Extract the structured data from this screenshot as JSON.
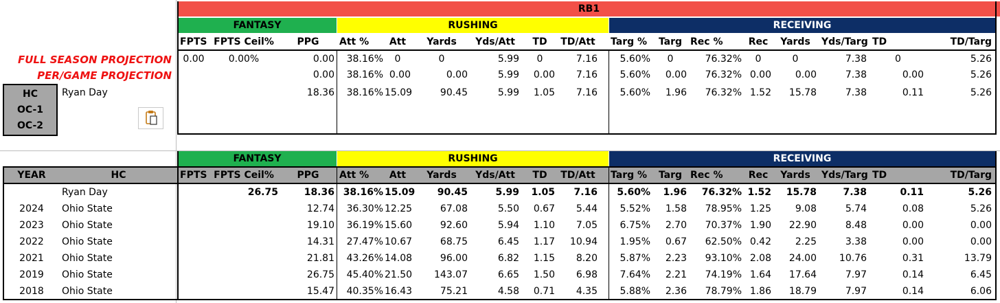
{
  "top": {
    "title": "RB1",
    "groups": {
      "fantasy": "FANTASY",
      "rushing": "RUSHING",
      "receiving": "RECEIVING"
    },
    "headers": [
      "FPTS",
      "FPTS Ceil%",
      "PPG",
      "Att %",
      "Att",
      "Yards",
      "Yds/Att",
      "TD",
      "TD/Att",
      "Targ %",
      "Targ",
      "Rec %",
      "Rec",
      "Yards",
      "Yds/Targ",
      "TD",
      "TD/Targ"
    ],
    "labels": {
      "full": "FULL SEASON PROJECTION",
      "per_game": "PER/GAME PROJECTION"
    },
    "rows": [
      [
        "0.00",
        "0.00%",
        "0.00",
        "38.16%",
        "0",
        "0",
        "5.99",
        "0",
        "7.16",
        "5.60%",
        "0",
        "76.32%",
        "0",
        "0",
        "7.38",
        "0",
        "5.26"
      ],
      [
        "",
        "",
        "0.00",
        "38.16%",
        "0.00",
        "0.00",
        "5.99",
        "0.00",
        "7.16",
        "5.60%",
        "0.00",
        "76.32%",
        "0.00",
        "0.00",
        "7.38",
        "0.00",
        "5.26"
      ],
      [
        "",
        "",
        "18.36",
        "38.16%",
        "15.09",
        "90.45",
        "5.99",
        "1.05",
        "7.16",
        "5.60%",
        "1.96",
        "76.32%",
        "1.52",
        "15.78",
        "7.38",
        "0.11",
        "5.26"
      ]
    ],
    "coach_box": [
      "HC",
      "OC-1",
      "OC-2"
    ],
    "coach_name": "Ryan Day"
  },
  "bottom": {
    "groups": {
      "fantasy": "FANTASY",
      "rushing": "RUSHING",
      "receiving": "RECEIVING"
    },
    "left_headers": [
      "YEAR",
      "HC"
    ],
    "headers": [
      "FPTS",
      "FPTS Ceil%",
      "PPG",
      "Att %",
      "Att",
      "Yards",
      "Yds/Att",
      "TD",
      "TD/Att",
      "Targ %",
      "Targ",
      "Rec %",
      "Rec",
      "Yards",
      "Yds/Targ",
      "TD",
      "TD/Targ"
    ],
    "summary": {
      "year": "",
      "hc": "Ryan Day",
      "values": [
        "",
        "26.75",
        "18.36",
        "38.16%",
        "15.09",
        "90.45",
        "5.99",
        "1.05",
        "7.16",
        "5.60%",
        "1.96",
        "76.32%",
        "1.52",
        "15.78",
        "7.38",
        "0.11",
        "5.26"
      ]
    },
    "rows": [
      {
        "year": "2024",
        "hc": "Ohio State",
        "values": [
          "",
          "",
          "12.74",
          "36.30%",
          "12.25",
          "67.08",
          "5.50",
          "0.67",
          "5.44",
          "5.52%",
          "1.58",
          "78.95%",
          "1.25",
          "9.08",
          "5.74",
          "0.08",
          "5.26"
        ]
      },
      {
        "year": "2023",
        "hc": "Ohio State",
        "values": [
          "",
          "",
          "19.10",
          "36.19%",
          "15.60",
          "92.60",
          "5.94",
          "1.10",
          "7.05",
          "6.75%",
          "2.70",
          "70.37%",
          "1.90",
          "22.90",
          "8.48",
          "0.00",
          "0.00"
        ]
      },
      {
        "year": "2022",
        "hc": "Ohio State",
        "values": [
          "",
          "",
          "14.31",
          "27.47%",
          "10.67",
          "68.75",
          "6.45",
          "1.17",
          "10.94",
          "1.95%",
          "0.67",
          "62.50%",
          "0.42",
          "2.25",
          "3.38",
          "0.00",
          "0.00"
        ]
      },
      {
        "year": "2021",
        "hc": "Ohio State",
        "values": [
          "",
          "",
          "21.81",
          "43.26%",
          "14.08",
          "96.00",
          "6.82",
          "1.15",
          "8.20",
          "5.87%",
          "2.23",
          "93.10%",
          "2.08",
          "24.00",
          "10.76",
          "0.31",
          "13.79"
        ]
      },
      {
        "year": "2019",
        "hc": "Ohio State",
        "values": [
          "",
          "",
          "26.75",
          "45.40%",
          "21.50",
          "143.07",
          "6.65",
          "1.50",
          "6.98",
          "7.64%",
          "2.21",
          "74.19%",
          "1.64",
          "17.64",
          "7.97",
          "0.14",
          "6.45"
        ]
      },
      {
        "year": "2018",
        "hc": "Ohio State",
        "values": [
          "",
          "",
          "15.47",
          "40.35%",
          "16.43",
          "75.21",
          "4.58",
          "0.71",
          "4.35",
          "5.88%",
          "2.36",
          "78.79%",
          "1.86",
          "18.79",
          "7.97",
          "0.14",
          "6.06"
        ]
      }
    ]
  },
  "colors": {
    "red": "#f25048",
    "green": "#1fb04f",
    "yellow": "#ffff00",
    "navy": "#0d2e66",
    "gray": "#a6a6a6",
    "projection_red": "#ee1111"
  },
  "icons": {
    "paste": "clipboard-paste-icon"
  }
}
